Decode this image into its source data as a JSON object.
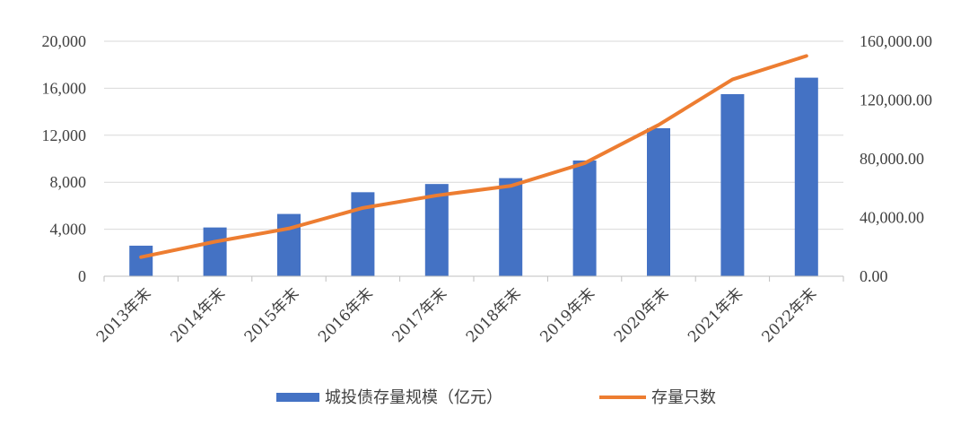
{
  "chart_data": {
    "type": "bar",
    "categories": [
      "2013年末",
      "2014年末",
      "2015年末",
      "2016年末",
      "2017年末",
      "2018年末",
      "2019年末",
      "2020年末",
      "2021年末",
      "2022年末"
    ],
    "series": [
      {
        "name": "城投债存量规模（亿元）",
        "type": "bar",
        "axis": "left",
        "color": "#4472C4",
        "values": [
          2600,
          4150,
          5300,
          7150,
          7850,
          8350,
          9850,
          12600,
          15500,
          16900
        ]
      },
      {
        "name": "存量只数",
        "type": "line",
        "axis": "right",
        "color": "#ED7D31",
        "values": [
          13000,
          23500,
          32500,
          46500,
          55000,
          61500,
          77000,
          103000,
          134000,
          150000
        ]
      }
    ],
    "left_axis": {
      "ylim": [
        0,
        20000
      ],
      "ticks": [
        0,
        4000,
        8000,
        12000,
        16000,
        20000
      ],
      "tick_labels": [
        "0",
        "4,000",
        "8,000",
        "12,000",
        "16,000",
        "20,000"
      ]
    },
    "right_axis": {
      "ylim": [
        0,
        160000
      ],
      "ticks": [
        0,
        40000,
        80000,
        120000,
        160000
      ],
      "tick_labels": [
        "0.00",
        "40,000.00",
        "80,000.00",
        "120,000.00",
        "160,000.00"
      ]
    },
    "grid": true,
    "legend": "bottom"
  }
}
